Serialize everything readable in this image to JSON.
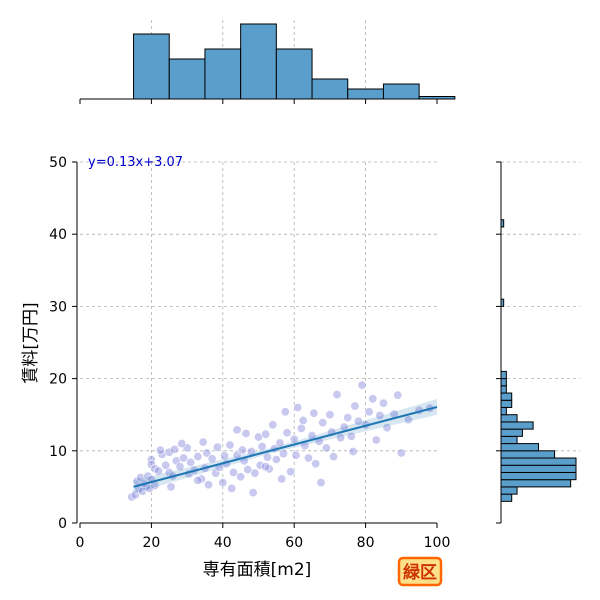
{
  "chart_data": {
    "type": "scatter",
    "xlabel": "専有面積[m2]",
    "ylabel": "賃料[万円]",
    "xlim": [
      0,
      100
    ],
    "ylim": [
      0,
      50
    ],
    "xticks": [
      0,
      20,
      40,
      60,
      80,
      100
    ],
    "yticks": [
      0,
      10,
      20,
      30,
      40,
      50
    ],
    "grid": true,
    "regression": {
      "equation": "y=0.13x+3.07",
      "slope": 0.13,
      "intercept": 3.07,
      "x_range": [
        15,
        100
      ]
    },
    "badge": "緑区",
    "colors": {
      "points": "#8888dd",
      "regression": "#1f77b4",
      "hist": "#5a9ecb",
      "equation": "#0000cc",
      "badge_fill": "#ffe08a",
      "badge_border": "#ff6600"
    },
    "points": [
      [
        14.5,
        3.6
      ],
      [
        15.5,
        3.9
      ],
      [
        16.5,
        4.7
      ],
      [
        17.5,
        4.4
      ],
      [
        18.5,
        5.0
      ],
      [
        19.5,
        4.8
      ],
      [
        16.0,
        5.8
      ],
      [
        17.0,
        6.3
      ],
      [
        18.0,
        5.5
      ],
      [
        19.0,
        6.5
      ],
      [
        20.0,
        6.0
      ],
      [
        21.0,
        5.2
      ],
      [
        20.0,
        8.8
      ],
      [
        20.0,
        8.1
      ],
      [
        21.0,
        7.5
      ],
      [
        22.0,
        7.2
      ],
      [
        23.0,
        9.5
      ],
      [
        24.0,
        8.0
      ],
      [
        25.0,
        7.0
      ],
      [
        25.0,
        9.8
      ],
      [
        26.0,
        6.5
      ],
      [
        26.5,
        10.2
      ],
      [
        27.0,
        8.6
      ],
      [
        28.0,
        7.8
      ],
      [
        29.0,
        9.0
      ],
      [
        30.0,
        10.4
      ],
      [
        30.5,
        6.8
      ],
      [
        31.0,
        8.4
      ],
      [
        32.0,
        7.3
      ],
      [
        33.0,
        9.2
      ],
      [
        34.0,
        6.1
      ],
      [
        35.0,
        7.6
      ],
      [
        35.5,
        9.7
      ],
      [
        36.0,
        5.3
      ],
      [
        37.0,
        8.9
      ],
      [
        38.0,
        6.9
      ],
      [
        39.0,
        7.7
      ],
      [
        40.0,
        5.6
      ],
      [
        40.5,
        9.3
      ],
      [
        41.0,
        8.2
      ],
      [
        42.0,
        10.8
      ],
      [
        43.0,
        7.0
      ],
      [
        44.0,
        9.4
      ],
      [
        45.0,
        6.4
      ],
      [
        45.5,
        10.1
      ],
      [
        46.0,
        8.6
      ],
      [
        47.0,
        7.4
      ],
      [
        48.0,
        9.9
      ],
      [
        48.5,
        4.2
      ],
      [
        49.0,
        6.9
      ],
      [
        50.0,
        11.9
      ],
      [
        50.5,
        8.0
      ],
      [
        51.0,
        10.6
      ],
      [
        52.0,
        12.3
      ],
      [
        52.5,
        9.1
      ],
      [
        53.0,
        7.5
      ],
      [
        54.0,
        13.6
      ],
      [
        54.5,
        10.3
      ],
      [
        55.0,
        8.8
      ],
      [
        56.0,
        11.1
      ],
      [
        57.0,
        9.6
      ],
      [
        58.0,
        12.5
      ],
      [
        59.0,
        7.1
      ],
      [
        60.0,
        11.6
      ],
      [
        60.5,
        9.4
      ],
      [
        61.0,
        16.0
      ],
      [
        62.0,
        13.1
      ],
      [
        63.0,
        10.7
      ],
      [
        64.0,
        9.0
      ],
      [
        65.0,
        12.1
      ],
      [
        65.5,
        15.2
      ],
      [
        66.0,
        8.2
      ],
      [
        67.0,
        11.3
      ],
      [
        68.0,
        13.9
      ],
      [
        69.0,
        10.4
      ],
      [
        70.0,
        15.0
      ],
      [
        70.5,
        12.6
      ],
      [
        72.0,
        17.8
      ],
      [
        73.0,
        11.8
      ],
      [
        74.0,
        13.3
      ],
      [
        75.0,
        14.6
      ],
      [
        76.0,
        12.0
      ],
      [
        77.0,
        16.2
      ],
      [
        78.0,
        14.1
      ],
      [
        79.0,
        19.1
      ],
      [
        80.0,
        13.6
      ],
      [
        81.0,
        15.4
      ],
      [
        82.0,
        17.2
      ],
      [
        84.0,
        14.9
      ],
      [
        85.0,
        16.6
      ],
      [
        86.0,
        13.2
      ],
      [
        88.0,
        15.1
      ],
      [
        89.0,
        17.7
      ],
      [
        90.0,
        9.7
      ],
      [
        92.0,
        14.3
      ],
      [
        95.0,
        15.6
      ],
      [
        98.0,
        15.9
      ],
      [
        42.5,
        4.8
      ],
      [
        56.5,
        6.1
      ],
      [
        34.5,
        11.2
      ],
      [
        22.5,
        10.1
      ],
      [
        67.5,
        5.6
      ],
      [
        76.5,
        9.9
      ],
      [
        28.5,
        11.0
      ],
      [
        46.5,
        12.4
      ],
      [
        62.5,
        14.2
      ],
      [
        52.0,
        7.8
      ],
      [
        38.5,
        10.5
      ],
      [
        57.5,
        15.4
      ],
      [
        33.0,
        5.9
      ],
      [
        44.0,
        12.9
      ],
      [
        71.0,
        9.2
      ],
      [
        83.0,
        11.5
      ],
      [
        25.5,
        5.0
      ]
    ],
    "hist_x": {
      "bins": [
        5,
        15,
        25,
        35,
        45,
        55,
        65,
        75,
        85,
        95,
        105
      ],
      "counts": [
        0,
        26,
        16,
        20,
        30,
        20,
        8,
        4,
        6,
        1
      ]
    },
    "hist_y": {
      "bin_width": 1,
      "bins": [
        [
          3,
          2
        ],
        [
          4,
          3
        ],
        [
          5,
          13
        ],
        [
          6,
          14
        ],
        [
          7,
          14
        ],
        [
          8,
          14
        ],
        [
          9,
          10
        ],
        [
          10,
          7
        ],
        [
          11,
          3
        ],
        [
          12,
          4
        ],
        [
          13,
          6
        ],
        [
          14,
          3
        ],
        [
          15,
          1
        ],
        [
          16,
          2
        ],
        [
          17,
          2
        ],
        [
          18,
          1
        ],
        [
          19,
          1
        ],
        [
          20,
          1
        ],
        [
          30,
          0.5
        ],
        [
          41,
          0.5
        ]
      ]
    }
  }
}
